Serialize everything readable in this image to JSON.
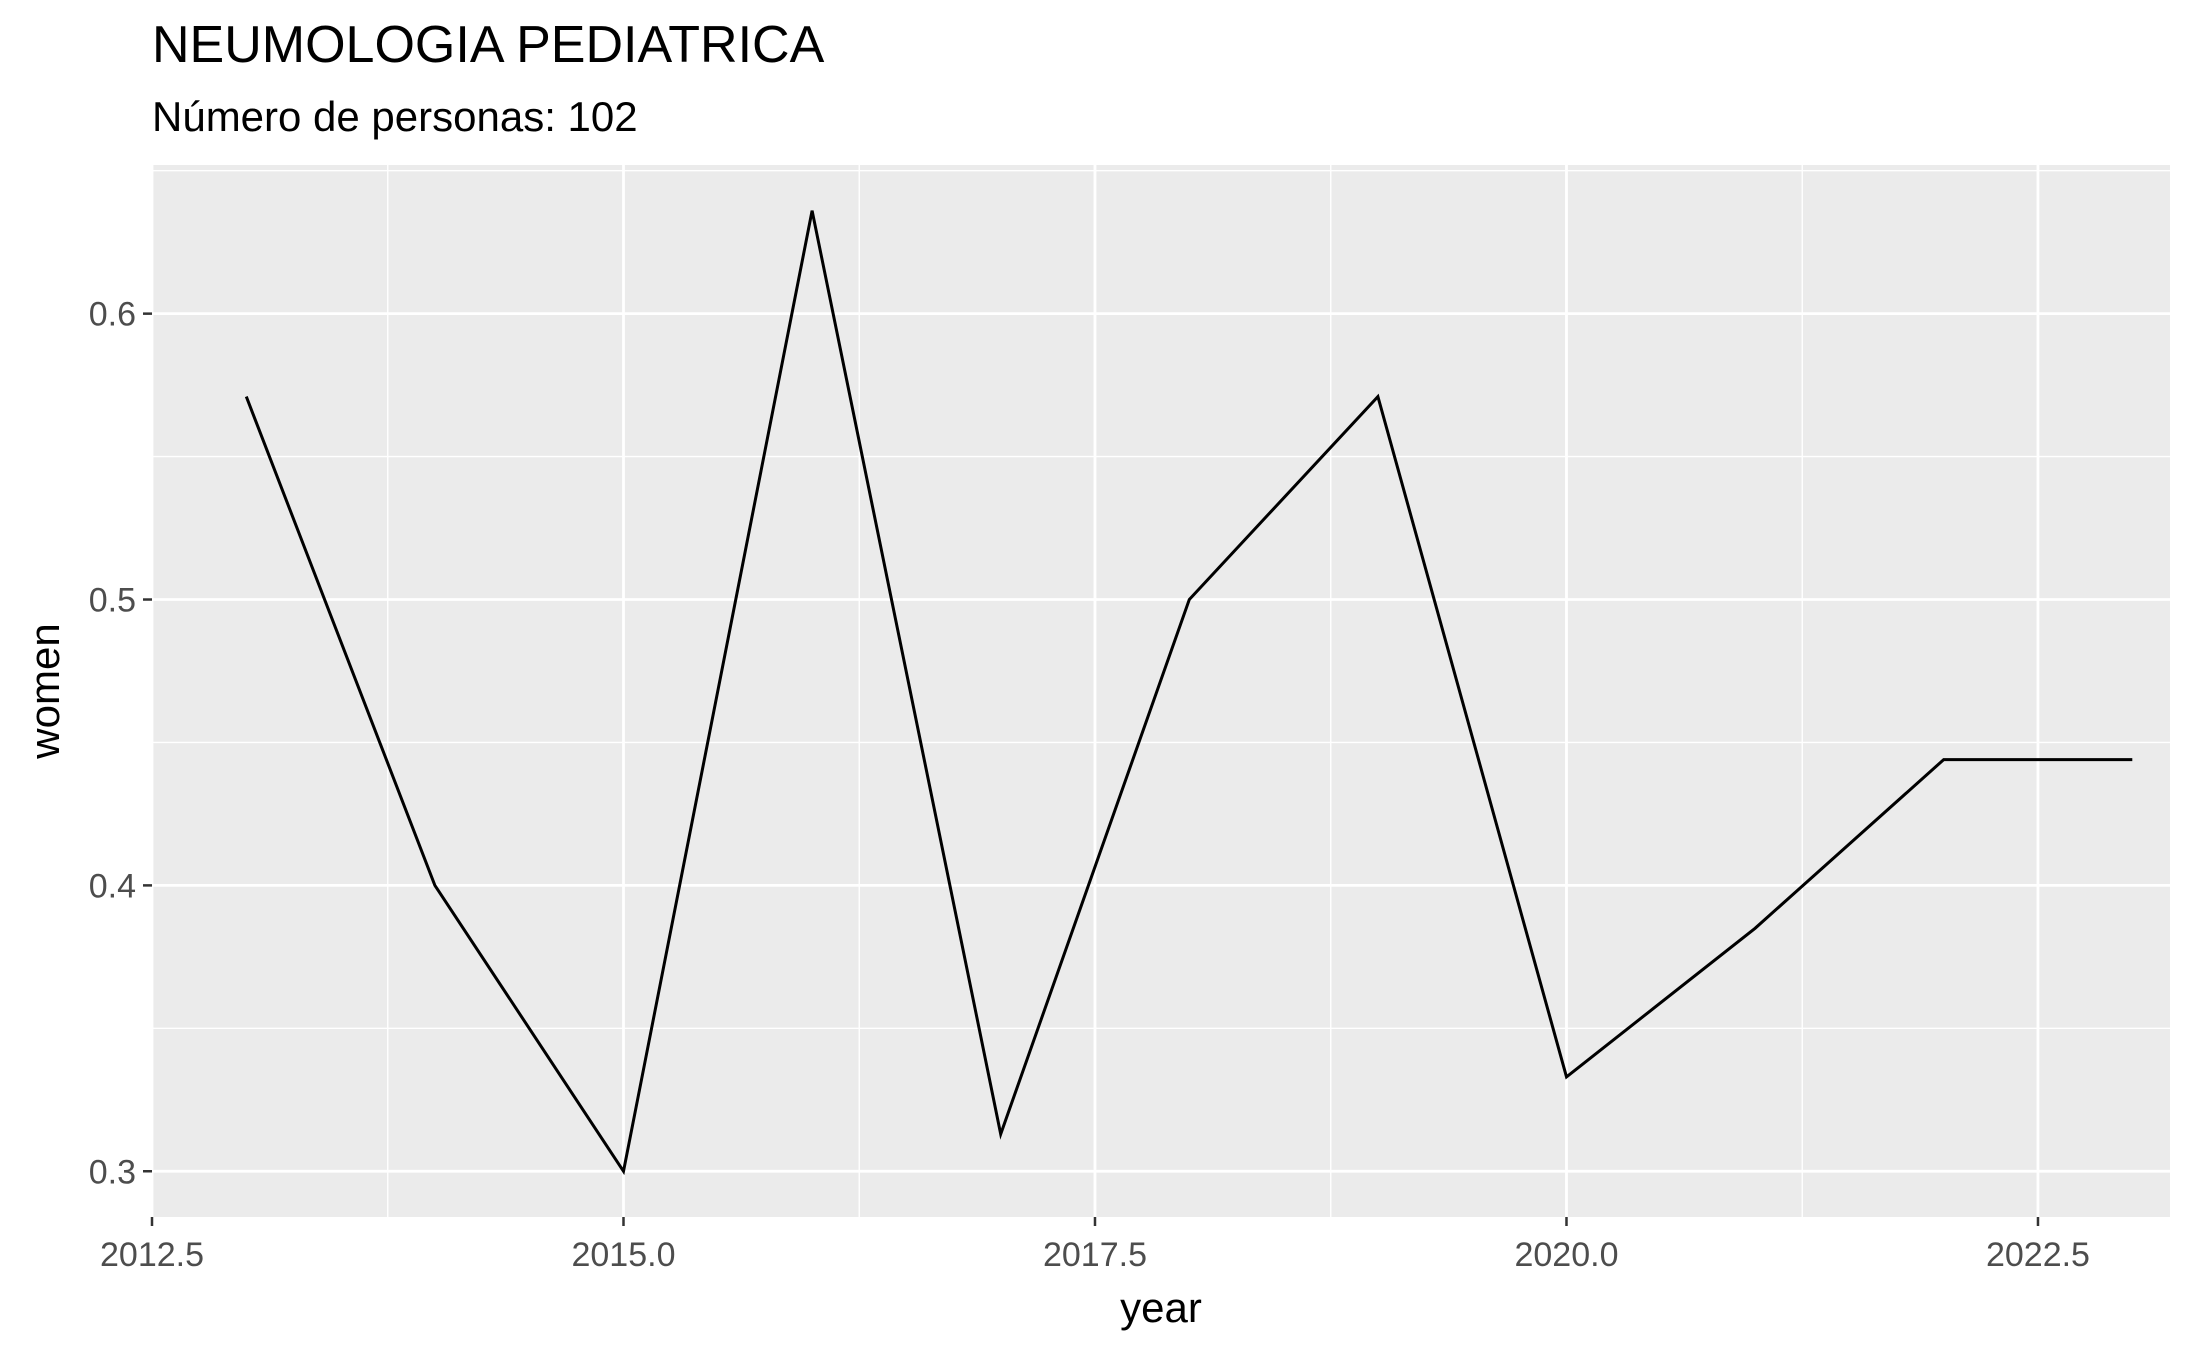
{
  "chart_data": {
    "type": "line",
    "title": "NEUMOLOGIA PEDIATRICA",
    "subtitle": "Número de personas: 102",
    "xlabel": "year",
    "ylabel": "women",
    "xlim": [
      2012.5,
      2023.2
    ],
    "ylim": [
      0.284,
      0.652
    ],
    "x_ticks": [
      2012.5,
      2015.0,
      2017.5,
      2020.0,
      2022.5
    ],
    "x_tick_labels": [
      "2012.5",
      "2015.0",
      "2017.5",
      "2020.0",
      "2022.5"
    ],
    "y_ticks": [
      0.3,
      0.4,
      0.5,
      0.6
    ],
    "y_tick_labels": [
      "0.3",
      "0.4",
      "0.5",
      "0.6"
    ],
    "grid": true,
    "legend": "none",
    "colors": {
      "panel": "#ebebeb",
      "grid": "#ffffff",
      "line": "#000000"
    },
    "series": [
      {
        "x": [
          2013,
          2014,
          2015,
          2016,
          2017,
          2018,
          2019,
          2020,
          2021,
          2022,
          2023
        ],
        "values": [
          0.571,
          0.4,
          0.3,
          0.636,
          0.313,
          0.5,
          0.571,
          0.333,
          0.385,
          0.444,
          0.444
        ]
      }
    ]
  }
}
